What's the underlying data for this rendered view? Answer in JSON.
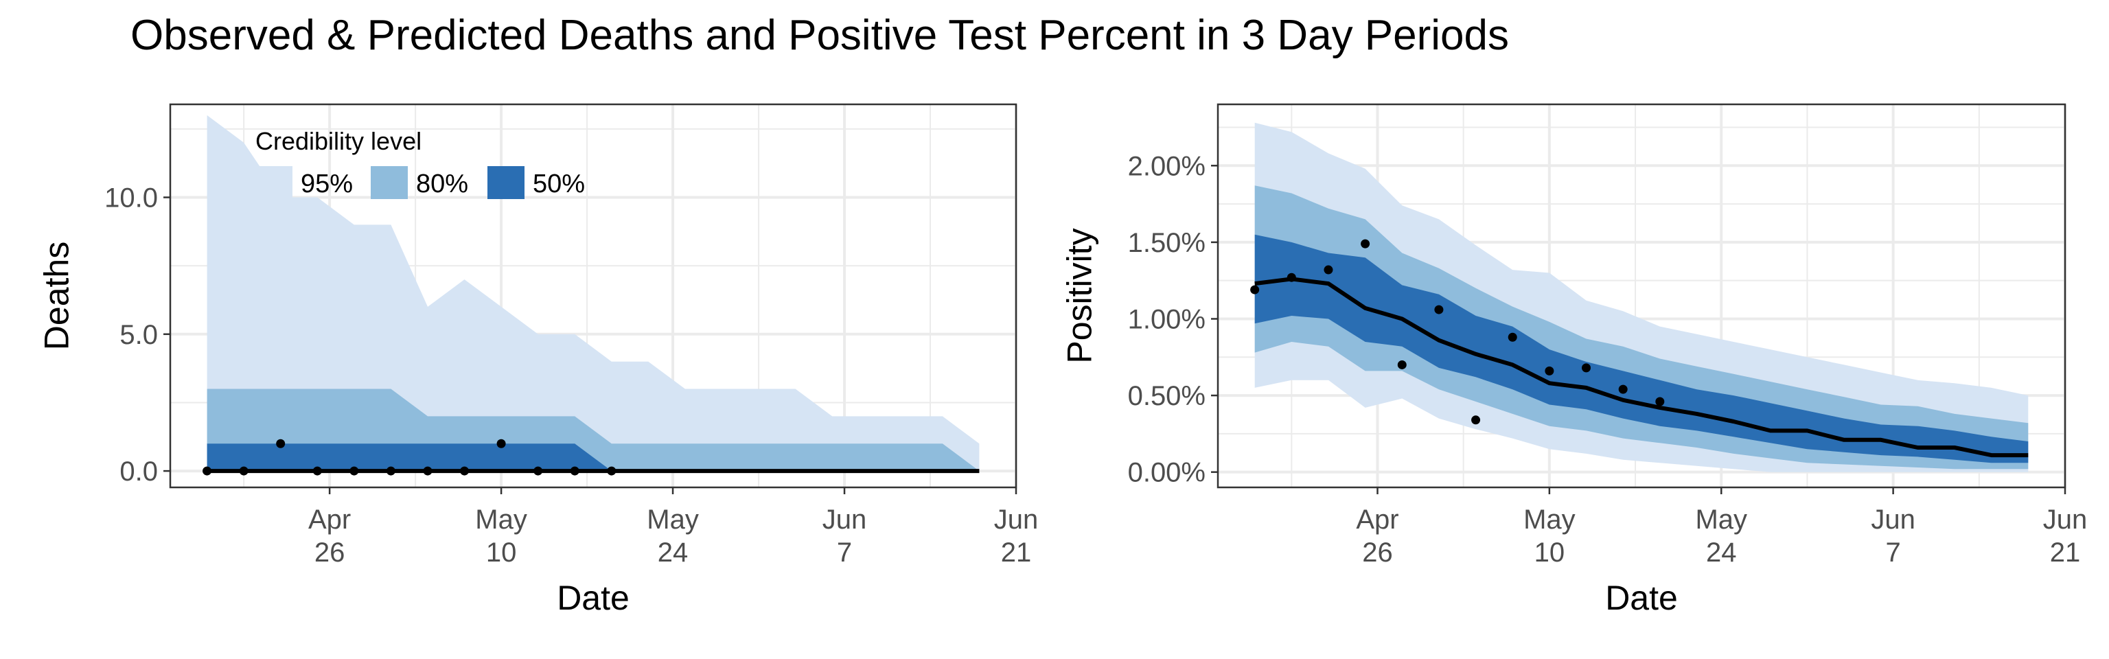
{
  "title": "Observed & Predicted Deaths and Positive Test Percent in 3 Day Periods",
  "colors": {
    "band95": "#D6E4F4",
    "band80": "#8FBCDC",
    "band50": "#2A6EB3",
    "line": "#000000",
    "grid": "#EBEBEB"
  },
  "chart_data": [
    {
      "type": "area",
      "title": "",
      "xlabel": "Date",
      "ylabel": "Deaths",
      "xlim": [
        "2020-04-13",
        "2020-06-21"
      ],
      "ylim": [
        -0.6,
        13.4
      ],
      "x_ticks": [
        {
          "date": "2020-04-26",
          "line1": "Apr",
          "line2": "26"
        },
        {
          "date": "2020-05-10",
          "line1": "May",
          "line2": "10"
        },
        {
          "date": "2020-05-24",
          "line1": "May",
          "line2": "24"
        },
        {
          "date": "2020-06-07",
          "line1": "Jun",
          "line2": "7"
        },
        {
          "date": "2020-06-21",
          "line1": "Jun",
          "line2": "21"
        }
      ],
      "y_ticks": [
        {
          "value": 0,
          "label": "0.0"
        },
        {
          "value": 5,
          "label": "5.0"
        },
        {
          "value": 10,
          "label": "10.0"
        }
      ],
      "x": [
        "2020-04-16",
        "2020-04-19",
        "2020-04-22",
        "2020-04-25",
        "2020-04-28",
        "2020-05-01",
        "2020-05-04",
        "2020-05-07",
        "2020-05-10",
        "2020-05-13",
        "2020-05-16",
        "2020-05-19",
        "2020-05-22",
        "2020-05-25",
        "2020-05-28",
        "2020-05-31",
        "2020-06-03",
        "2020-06-06",
        "2020-06-09",
        "2020-06-12",
        "2020-06-15",
        "2020-06-18"
      ],
      "band95": {
        "lower": [
          0,
          0,
          0,
          0,
          0,
          0,
          0,
          0,
          0,
          0,
          0,
          0,
          0,
          0,
          0,
          0,
          0,
          0,
          0,
          0,
          0,
          0
        ],
        "upper": [
          13,
          12,
          10,
          10,
          9,
          9,
          6,
          7,
          6,
          5,
          5,
          4,
          4,
          3,
          3,
          3,
          3,
          2,
          2,
          2,
          2,
          1
        ]
      },
      "band80": {
        "lower": [
          0,
          0,
          0,
          0,
          0,
          0,
          0,
          0,
          0,
          0,
          0,
          0,
          0,
          0,
          0,
          0,
          0,
          0,
          0,
          0,
          0,
          0
        ],
        "upper": [
          3,
          3,
          3,
          3,
          3,
          3,
          2,
          2,
          2,
          2,
          2,
          1,
          1,
          1,
          1,
          1,
          1,
          1,
          1,
          1,
          1,
          0
        ]
      },
      "band50": {
        "lower": [
          0,
          0,
          0,
          0,
          0,
          0,
          0,
          0,
          0,
          0,
          0,
          0,
          0,
          0,
          0,
          0,
          0,
          0,
          0,
          0,
          0,
          0
        ],
        "upper": [
          1,
          1,
          1,
          1,
          1,
          1,
          1,
          1,
          1,
          1,
          1,
          0,
          0,
          0,
          0,
          0,
          0,
          0,
          0,
          0,
          0,
          0
        ]
      },
      "median": [
        0,
        0,
        0,
        0,
        0,
        0,
        0,
        0,
        0,
        0,
        0,
        0,
        0,
        0,
        0,
        0,
        0,
        0,
        0,
        0,
        0,
        0
      ],
      "observed": [
        {
          "x": "2020-04-16",
          "y": 0
        },
        {
          "x": "2020-04-19",
          "y": 0
        },
        {
          "x": "2020-04-22",
          "y": 1
        },
        {
          "x": "2020-04-25",
          "y": 0
        },
        {
          "x": "2020-04-28",
          "y": 0
        },
        {
          "x": "2020-05-01",
          "y": 0
        },
        {
          "x": "2020-05-04",
          "y": 0
        },
        {
          "x": "2020-05-07",
          "y": 0
        },
        {
          "x": "2020-05-10",
          "y": 1
        },
        {
          "x": "2020-05-13",
          "y": 0
        },
        {
          "x": "2020-05-16",
          "y": 0
        },
        {
          "x": "2020-05-19",
          "y": 0
        }
      ],
      "legend": {
        "title": "Credibility level",
        "position": "top-left",
        "items": [
          {
            "label": "95%",
            "color": "#D6E4F4"
          },
          {
            "label": "80%",
            "color": "#8FBCDC"
          },
          {
            "label": "50%",
            "color": "#2A6EB3"
          }
        ]
      },
      "grid": true
    },
    {
      "type": "area",
      "title": "",
      "xlabel": "Date",
      "ylabel": "Positivity",
      "xlim": [
        "2020-04-13",
        "2020-06-21"
      ],
      "ylim": [
        -0.1,
        2.4
      ],
      "x_ticks": [
        {
          "date": "2020-04-26",
          "line1": "Apr",
          "line2": "26"
        },
        {
          "date": "2020-05-10",
          "line1": "May",
          "line2": "10"
        },
        {
          "date": "2020-05-24",
          "line1": "May",
          "line2": "24"
        },
        {
          "date": "2020-06-07",
          "line1": "Jun",
          "line2": "7"
        },
        {
          "date": "2020-06-21",
          "line1": "Jun",
          "line2": "21"
        }
      ],
      "y_ticks": [
        {
          "value": 0,
          "label": "0.00%"
        },
        {
          "value": 0.5,
          "label": "0.50%"
        },
        {
          "value": 1.0,
          "label": "1.00%"
        },
        {
          "value": 1.5,
          "label": "1.50%"
        },
        {
          "value": 2.0,
          "label": "2.00%"
        }
      ],
      "x": [
        "2020-04-16",
        "2020-04-19",
        "2020-04-22",
        "2020-04-25",
        "2020-04-28",
        "2020-05-01",
        "2020-05-04",
        "2020-05-07",
        "2020-05-10",
        "2020-05-13",
        "2020-05-16",
        "2020-05-19",
        "2020-05-22",
        "2020-05-25",
        "2020-05-28",
        "2020-05-31",
        "2020-06-03",
        "2020-06-06",
        "2020-06-09",
        "2020-06-12",
        "2020-06-15",
        "2020-06-18"
      ],
      "band95": {
        "lower": [
          0.55,
          0.6,
          0.6,
          0.42,
          0.48,
          0.35,
          0.28,
          0.22,
          0.15,
          0.12,
          0.08,
          0.06,
          0.04,
          0.02,
          0.0,
          0.0,
          0.0,
          0.0,
          0.0,
          0.0,
          0.0,
          0.0
        ],
        "upper": [
          2.28,
          2.22,
          2.08,
          1.98,
          1.74,
          1.65,
          1.48,
          1.32,
          1.3,
          1.12,
          1.05,
          0.95,
          0.9,
          0.85,
          0.8,
          0.75,
          0.7,
          0.65,
          0.6,
          0.58,
          0.55,
          0.5
        ]
      },
      "band80": {
        "lower": [
          0.78,
          0.85,
          0.82,
          0.66,
          0.66,
          0.54,
          0.46,
          0.38,
          0.3,
          0.27,
          0.22,
          0.19,
          0.16,
          0.12,
          0.09,
          0.06,
          0.05,
          0.04,
          0.03,
          0.02,
          0.02,
          0.02
        ],
        "upper": [
          1.87,
          1.82,
          1.72,
          1.65,
          1.43,
          1.33,
          1.2,
          1.08,
          0.98,
          0.87,
          0.82,
          0.74,
          0.69,
          0.64,
          0.59,
          0.54,
          0.49,
          0.44,
          0.43,
          0.38,
          0.35,
          0.32
        ]
      },
      "band50": {
        "lower": [
          0.97,
          1.02,
          1.0,
          0.85,
          0.82,
          0.68,
          0.62,
          0.54,
          0.44,
          0.41,
          0.35,
          0.3,
          0.27,
          0.23,
          0.19,
          0.15,
          0.13,
          0.11,
          0.1,
          0.08,
          0.06,
          0.06
        ],
        "upper": [
          1.55,
          1.5,
          1.43,
          1.4,
          1.22,
          1.16,
          1.02,
          0.95,
          0.8,
          0.72,
          0.66,
          0.6,
          0.54,
          0.5,
          0.45,
          0.4,
          0.35,
          0.31,
          0.3,
          0.27,
          0.23,
          0.2
        ]
      },
      "median": [
        1.23,
        1.26,
        1.23,
        1.07,
        1.0,
        0.86,
        0.77,
        0.7,
        0.58,
        0.55,
        0.47,
        0.42,
        0.38,
        0.33,
        0.27,
        0.27,
        0.21,
        0.21,
        0.16,
        0.16,
        0.11,
        0.11
      ],
      "observed": [
        {
          "x": "2020-04-16",
          "y": 1.19
        },
        {
          "x": "2020-04-19",
          "y": 1.27
        },
        {
          "x": "2020-04-22",
          "y": 1.32
        },
        {
          "x": "2020-04-25",
          "y": 1.49
        },
        {
          "x": "2020-04-28",
          "y": 0.7
        },
        {
          "x": "2020-05-01",
          "y": 1.06
        },
        {
          "x": "2020-05-04",
          "y": 0.34
        },
        {
          "x": "2020-05-07",
          "y": 0.88
        },
        {
          "x": "2020-05-10",
          "y": 0.66
        },
        {
          "x": "2020-05-13",
          "y": 0.68
        },
        {
          "x": "2020-05-16",
          "y": 0.54
        },
        {
          "x": "2020-05-19",
          "y": 0.46
        }
      ],
      "grid": true
    }
  ]
}
